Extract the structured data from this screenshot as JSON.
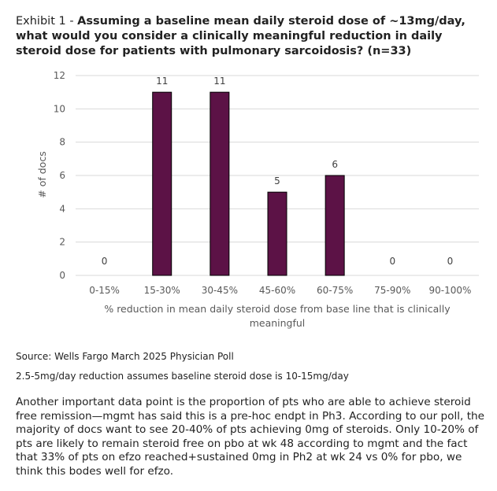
{
  "title": {
    "prefix": "Exhibit 1 - ",
    "text": "Assuming a baseline mean daily steroid dose of ~13mg/day, what would you consider a clinically meaningful reduction in daily steroid dose for patients with pulmonary sarcoidosis? (n=33)"
  },
  "chart_data": {
    "type": "bar",
    "categories": [
      "0-15%",
      "15-30%",
      "30-45%",
      "45-60%",
      "60-75%",
      "75-90%",
      "90-100%"
    ],
    "values": [
      0,
      11,
      11,
      5,
      6,
      0,
      0
    ],
    "data_labels": [
      "0",
      "11",
      "11",
      "5",
      "6",
      "0",
      "0"
    ],
    "title": "",
    "xlabel": [
      "% reduction in mean daily steroid dose from base line that is clinically",
      "meaningful"
    ],
    "ylabel": "# of docs",
    "ylim": [
      0,
      12
    ],
    "yticks": [
      0,
      2,
      4,
      6,
      8,
      10,
      12
    ],
    "grid": true,
    "legend": "none",
    "bar_color": "#5c1246"
  },
  "source": "Source: Wells Fargo March 2025 Physician Poll",
  "footnote": "2.5-5mg/day reduction assumes baseline steroid dose is 10-15mg/day",
  "paragraph": "Another important data point is the proportion of pts who are able to achieve steroid free remission—mgmt has said this is a pre-hoc endpt in Ph3. According to our poll, the majority of docs want to see 20-40% of pts achieving 0mg of steroids. Only 10-20% of pts are likely to remain steroid free on pbo at wk 48 according to mgmt and the fact that 33% of pts on efzo reached+sustained 0mg in Ph2 at wk 24 vs 0% for pbo, we think this bodes well for efzo."
}
